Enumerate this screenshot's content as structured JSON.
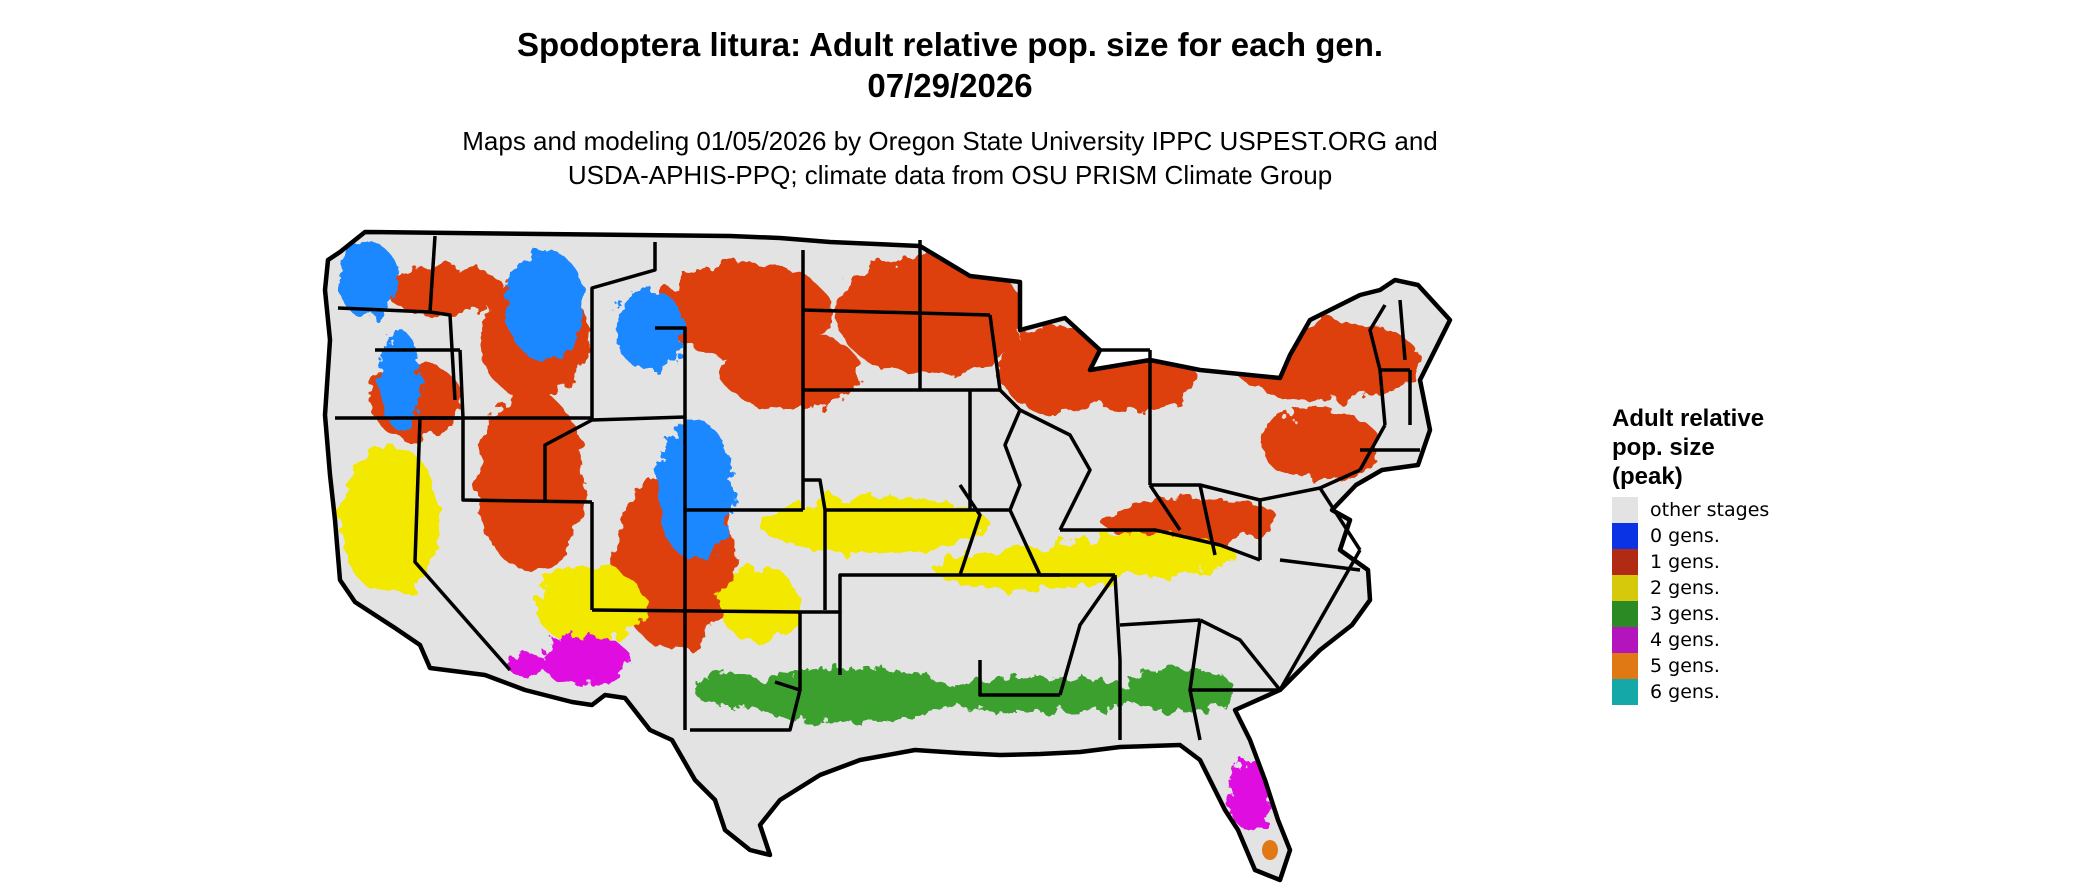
{
  "header": {
    "title_line1": "Spodoptera litura: Adult relative pop. size for each gen.",
    "title_line2": "07/29/2026",
    "subtitle_line1": "Maps and modeling 01/05/2026 by Oregon State University IPPC USPEST.ORG and",
    "subtitle_line2": "USDA-APHIS-PPQ; climate data from OSU PRISM Climate Group"
  },
  "legend": {
    "title_line1": "Adult relative",
    "title_line2": "pop. size",
    "title_line3": "(peak)",
    "items": [
      {
        "label": "other stages",
        "color": "#e3e3e3"
      },
      {
        "label": "0 gens.",
        "color": "#0a33e6"
      },
      {
        "label": "1 gens.",
        "color": "#b02a14"
      },
      {
        "label": "2 gens.",
        "color": "#d6c80a"
      },
      {
        "label": "3 gens.",
        "color": "#2b8a23"
      },
      {
        "label": "4 gens.",
        "color": "#b414bc"
      },
      {
        "label": "5 gens.",
        "color": "#e07814"
      },
      {
        "label": "6 gens.",
        "color": "#14a8a8"
      }
    ]
  },
  "map": {
    "base_color": "#e3e3e3",
    "border_color": "#000000",
    "zone_colors": {
      "gen0": "#1e88ff",
      "gen1": "#dd4010",
      "gen2": "#f2e800",
      "gen3": "#3aa02e",
      "gen4": "#e010e0",
      "gen5": "#e07814"
    }
  }
}
